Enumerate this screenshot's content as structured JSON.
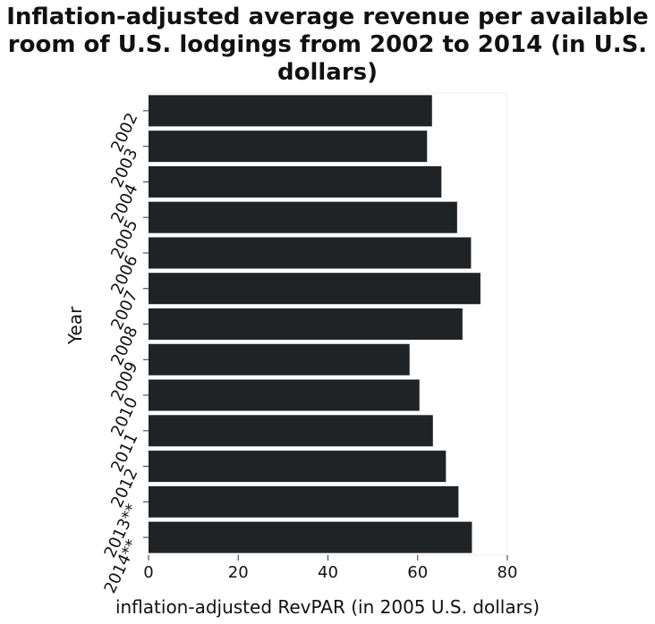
{
  "chart_data": {
    "type": "bar",
    "orientation": "horizontal",
    "title": "Inflation-adjusted average revenue per available room of U.S. lodgings from 2002 to 2014 (in U.S. dollars)",
    "xlabel": "inflation-adjusted RevPAR (in 2005 U.S. dollars)",
    "ylabel": "Year",
    "categories": [
      "2002",
      "2003",
      "2004",
      "2005",
      "2006",
      "2007",
      "2008",
      "2009",
      "2010",
      "2011",
      "2012",
      "2013**",
      "2014**"
    ],
    "values": [
      63.2,
      62.1,
      65.3,
      68.8,
      71.9,
      74.0,
      70.0,
      58.2,
      60.4,
      63.4,
      66.3,
      69.1,
      72.1
    ],
    "xlim": [
      0,
      80
    ],
    "xticks": [
      0,
      20,
      40,
      60,
      80
    ],
    "bar_color": "#1f2326",
    "grid": false,
    "legend": "none"
  }
}
